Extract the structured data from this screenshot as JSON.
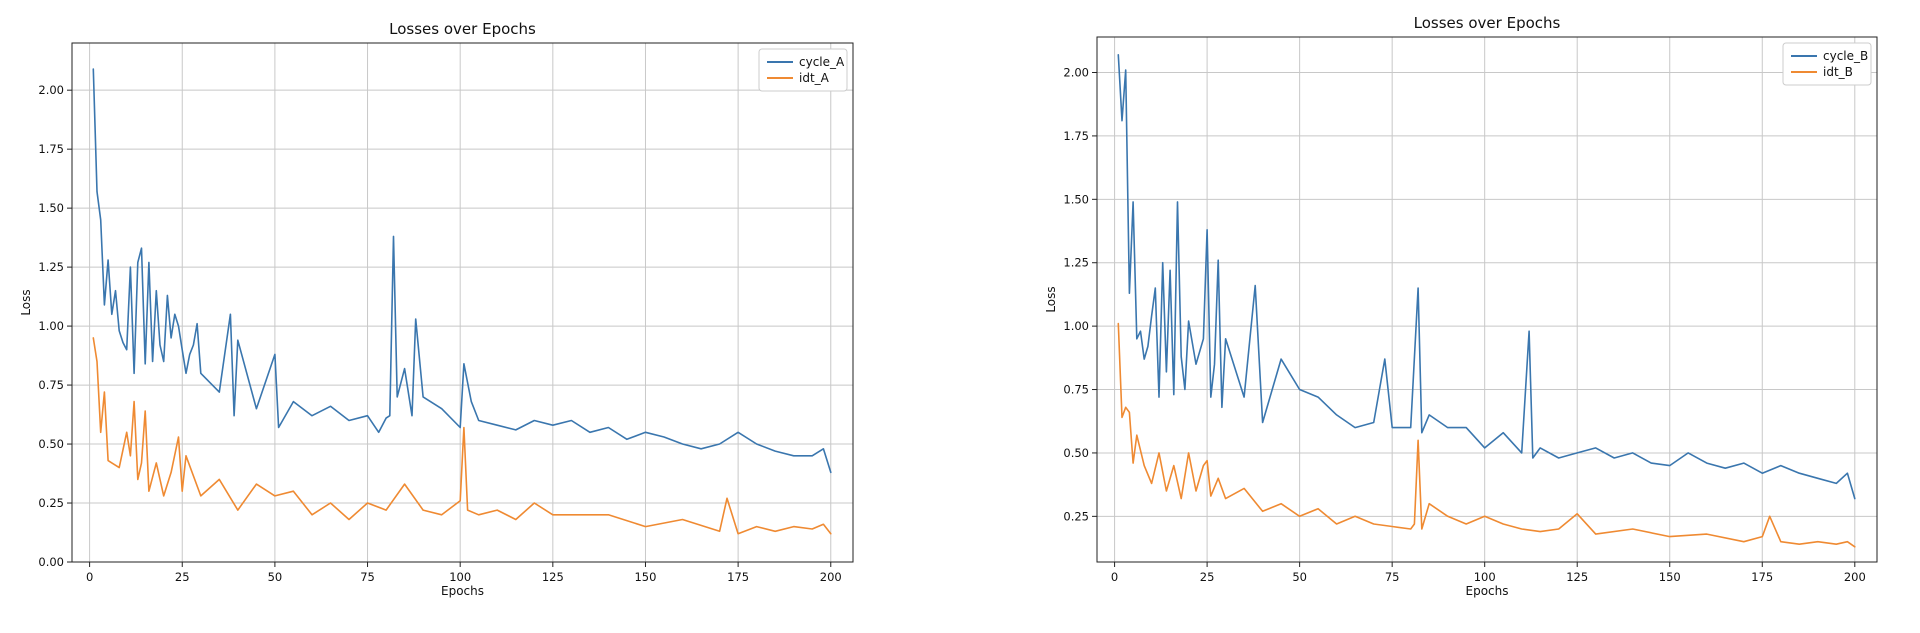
{
  "chart_data": [
    {
      "type": "line",
      "title": "Losses over Epochs",
      "xlabel": "Epochs",
      "ylabel": "Loss",
      "xlim": [
        -4.75,
        206
      ],
      "ylim": [
        0,
        2.2
      ],
      "xticks": [
        0,
        25,
        50,
        75,
        100,
        125,
        150,
        175,
        200
      ],
      "yticks": [
        0.0,
        0.25,
        0.5,
        0.75,
        1.0,
        1.25,
        1.5,
        1.75,
        2.0
      ],
      "grid": true,
      "legend_position": "top-right",
      "series": [
        {
          "name": "cycle_A",
          "color": "#3a76ae",
          "x": [
            1,
            2,
            3,
            4,
            5,
            6,
            7,
            8,
            9,
            10,
            11,
            12,
            13,
            14,
            15,
            16,
            17,
            18,
            19,
            20,
            21,
            22,
            23,
            24,
            25,
            26,
            27,
            28,
            29,
            30,
            35,
            38,
            39,
            40,
            45,
            50,
            51,
            55,
            60,
            65,
            70,
            75,
            78,
            80,
            81,
            82,
            83,
            85,
            87,
            88,
            90,
            95,
            100,
            101,
            103,
            105,
            110,
            115,
            120,
            125,
            130,
            135,
            140,
            145,
            150,
            155,
            160,
            165,
            170,
            175,
            180,
            185,
            190,
            195,
            198,
            200
          ],
          "y": [
            2.09,
            1.57,
            1.45,
            1.09,
            1.28,
            1.05,
            1.15,
            0.98,
            0.93,
            0.9,
            1.25,
            0.8,
            1.27,
            1.33,
            0.84,
            1.27,
            0.85,
            1.15,
            0.92,
            0.85,
            1.13,
            0.95,
            1.05,
            1.0,
            0.9,
            0.8,
            0.88,
            0.92,
            1.01,
            0.8,
            0.72,
            1.05,
            0.62,
            0.94,
            0.65,
            0.88,
            0.57,
            0.68,
            0.62,
            0.66,
            0.6,
            0.62,
            0.55,
            0.61,
            0.62,
            1.38,
            0.7,
            0.82,
            0.62,
            1.03,
            0.7,
            0.65,
            0.57,
            0.84,
            0.68,
            0.6,
            0.58,
            0.56,
            0.6,
            0.58,
            0.6,
            0.55,
            0.57,
            0.52,
            0.55,
            0.53,
            0.5,
            0.48,
            0.5,
            0.55,
            0.5,
            0.47,
            0.45,
            0.45,
            0.48,
            0.38
          ]
        },
        {
          "name": "idt_A",
          "color": "#ef8a32",
          "x": [
            1,
            2,
            3,
            4,
            5,
            6,
            8,
            10,
            11,
            12,
            13,
            14,
            15,
            16,
            18,
            20,
            22,
            24,
            25,
            26,
            30,
            35,
            40,
            45,
            50,
            55,
            60,
            65,
            70,
            75,
            80,
            85,
            90,
            95,
            100,
            101,
            102,
            105,
            110,
            115,
            120,
            125,
            130,
            140,
            150,
            160,
            170,
            172,
            175,
            180,
            185,
            190,
            195,
            198,
            200
          ],
          "y": [
            0.95,
            0.85,
            0.55,
            0.72,
            0.43,
            0.42,
            0.4,
            0.55,
            0.45,
            0.68,
            0.35,
            0.42,
            0.64,
            0.3,
            0.42,
            0.28,
            0.38,
            0.53,
            0.3,
            0.45,
            0.28,
            0.35,
            0.22,
            0.33,
            0.28,
            0.3,
            0.2,
            0.25,
            0.18,
            0.25,
            0.22,
            0.33,
            0.22,
            0.2,
            0.26,
            0.57,
            0.22,
            0.2,
            0.22,
            0.18,
            0.25,
            0.2,
            0.2,
            0.2,
            0.15,
            0.18,
            0.13,
            0.27,
            0.12,
            0.15,
            0.13,
            0.15,
            0.14,
            0.16,
            0.12
          ]
        }
      ]
    },
    {
      "type": "line",
      "title": "Losses over Epochs",
      "xlabel": "Epochs",
      "ylabel": "Loss",
      "xlim": [
        -4.75,
        206
      ],
      "ylim": [
        0.07,
        2.14
      ],
      "xticks": [
        0,
        25,
        50,
        75,
        100,
        125,
        150,
        175,
        200
      ],
      "yticks": [
        0.25,
        0.5,
        0.75,
        1.0,
        1.25,
        1.5,
        1.75,
        2.0
      ],
      "grid": true,
      "legend_position": "top-right",
      "series": [
        {
          "name": "cycle_B",
          "color": "#3a76ae",
          "x": [
            1,
            2,
            3,
            4,
            5,
            6,
            7,
            8,
            9,
            10,
            11,
            12,
            13,
            14,
            15,
            16,
            17,
            18,
            19,
            20,
            22,
            24,
            25,
            26,
            27,
            28,
            29,
            30,
            35,
            38,
            40,
            45,
            50,
            55,
            60,
            65,
            70,
            73,
            75,
            80,
            82,
            83,
            85,
            90,
            95,
            100,
            105,
            110,
            112,
            113,
            115,
            120,
            125,
            130,
            135,
            140,
            145,
            150,
            155,
            160,
            165,
            170,
            175,
            180,
            185,
            190,
            195,
            198,
            200
          ],
          "y": [
            2.07,
            1.81,
            2.01,
            1.13,
            1.49,
            0.95,
            0.98,
            0.87,
            0.92,
            1.04,
            1.15,
            0.72,
            1.25,
            0.82,
            1.22,
            0.73,
            1.49,
            0.88,
            0.75,
            1.02,
            0.85,
            0.95,
            1.38,
            0.72,
            0.85,
            1.26,
            0.68,
            0.95,
            0.72,
            1.16,
            0.62,
            0.87,
            0.75,
            0.72,
            0.65,
            0.6,
            0.62,
            0.87,
            0.6,
            0.6,
            1.15,
            0.58,
            0.65,
            0.6,
            0.6,
            0.52,
            0.58,
            0.5,
            0.98,
            0.48,
            0.52,
            0.48,
            0.5,
            0.52,
            0.48,
            0.5,
            0.46,
            0.45,
            0.5,
            0.46,
            0.44,
            0.46,
            0.42,
            0.45,
            0.42,
            0.4,
            0.38,
            0.42,
            0.32
          ]
        },
        {
          "name": "idt_B",
          "color": "#ef8a32",
          "x": [
            1,
            2,
            3,
            4,
            5,
            6,
            8,
            10,
            12,
            14,
            16,
            18,
            20,
            22,
            24,
            25,
            26,
            28,
            30,
            35,
            40,
            45,
            50,
            55,
            60,
            65,
            70,
            75,
            80,
            81,
            82,
            83,
            85,
            90,
            95,
            100,
            105,
            110,
            115,
            120,
            125,
            130,
            140,
            150,
            160,
            170,
            175,
            177,
            180,
            185,
            190,
            195,
            198,
            200
          ],
          "y": [
            1.01,
            0.64,
            0.68,
            0.66,
            0.46,
            0.57,
            0.45,
            0.38,
            0.5,
            0.35,
            0.45,
            0.32,
            0.5,
            0.35,
            0.45,
            0.47,
            0.33,
            0.4,
            0.32,
            0.36,
            0.27,
            0.3,
            0.25,
            0.28,
            0.22,
            0.25,
            0.22,
            0.21,
            0.2,
            0.22,
            0.55,
            0.2,
            0.3,
            0.25,
            0.22,
            0.25,
            0.22,
            0.2,
            0.19,
            0.2,
            0.26,
            0.18,
            0.2,
            0.17,
            0.18,
            0.15,
            0.17,
            0.25,
            0.15,
            0.14,
            0.15,
            0.14,
            0.15,
            0.13
          ]
        }
      ]
    }
  ]
}
